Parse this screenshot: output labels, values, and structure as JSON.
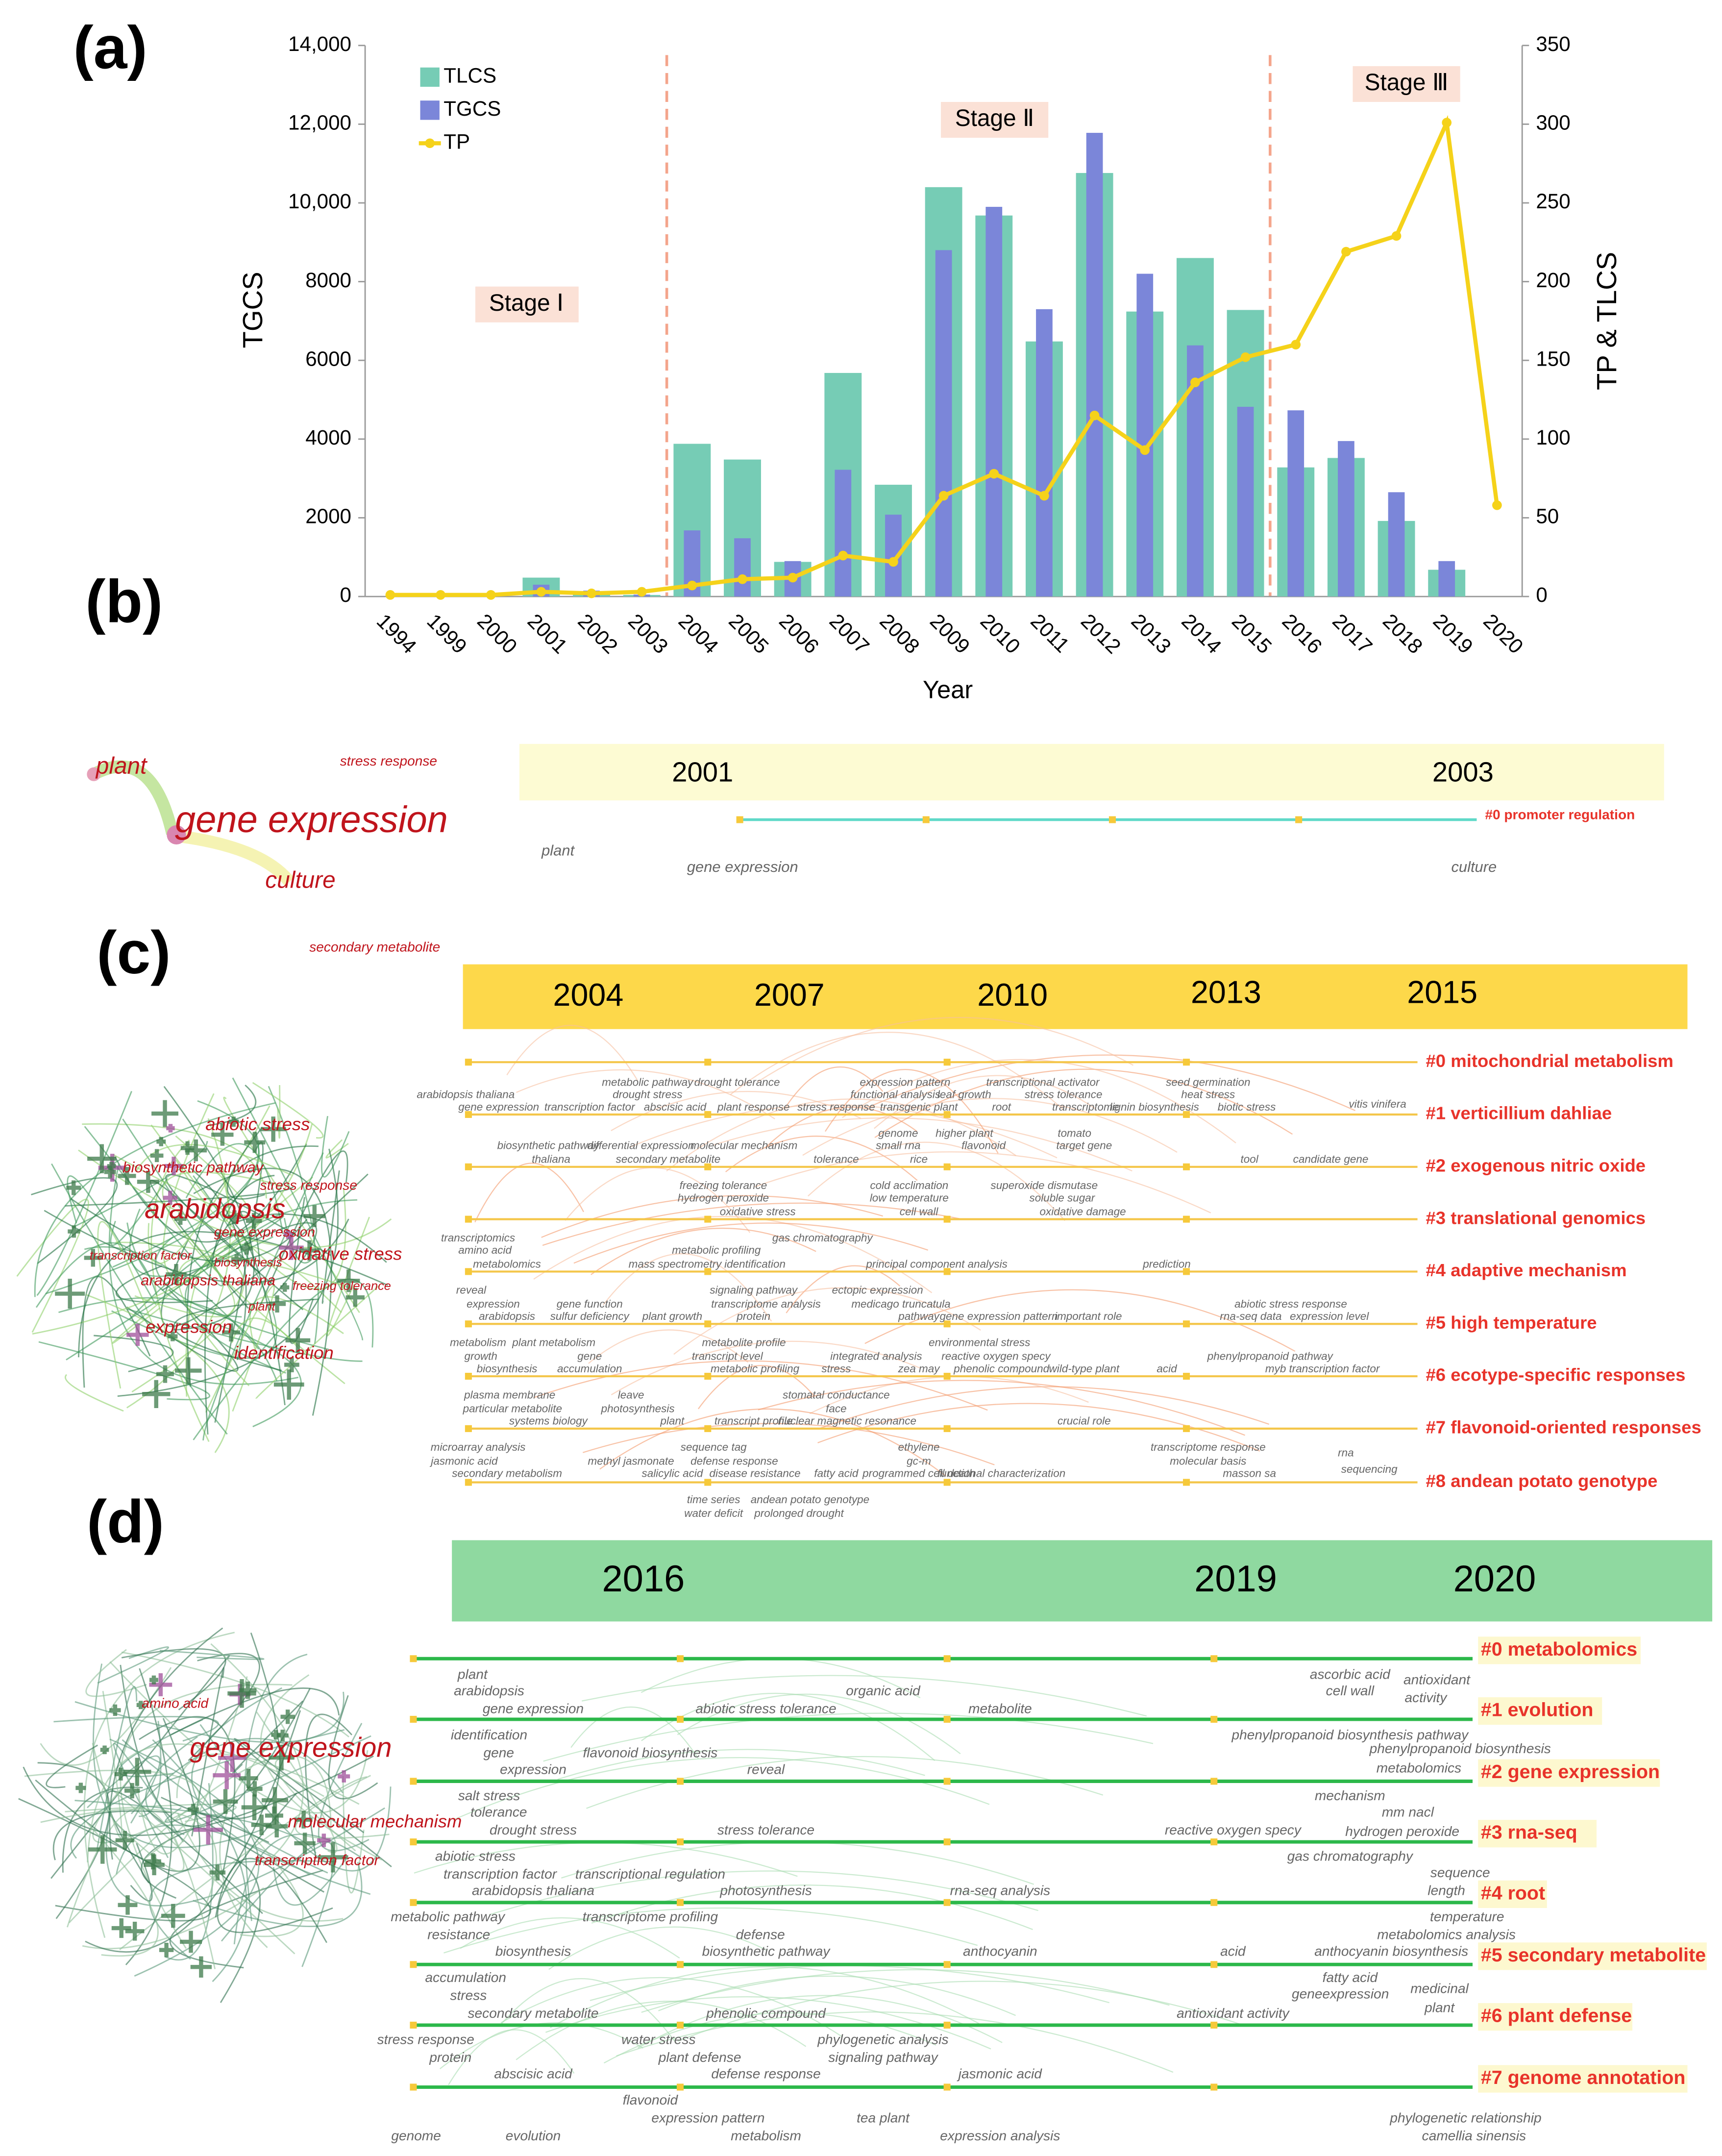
{
  "chart_data": {
    "type": "bar",
    "panel_label": "(a)",
    "categories": [
      "1994",
      "1999",
      "2000",
      "2001",
      "2002",
      "2003",
      "2004",
      "2005",
      "2006",
      "2007",
      "2008",
      "2009",
      "2010",
      "2011",
      "2012",
      "2013",
      "2014",
      "2015",
      "2016",
      "2017",
      "2018",
      "2019",
      "2020"
    ],
    "series": [
      {
        "name": "TLCS",
        "color": "#76ccb5",
        "axis": "y2",
        "values": [
          0,
          0,
          0,
          12,
          3,
          1,
          97,
          87,
          22,
          142,
          71,
          260,
          242,
          162,
          269,
          181,
          215,
          182,
          82,
          88,
          48,
          17,
          0
        ]
      },
      {
        "name": "TGCS",
        "color": "#7b86d9",
        "values": [
          0,
          0,
          0,
          300,
          150,
          50,
          1680,
          1480,
          900,
          3220,
          2080,
          8800,
          9900,
          7300,
          11780,
          8200,
          6380,
          4820,
          4730,
          3950,
          2650,
          900,
          0
        ]
      },
      {
        "name": "TP",
        "color": "#f5d21a",
        "axis": "y2",
        "type": "line",
        "values": [
          1,
          1,
          1,
          3,
          2,
          3,
          7,
          11,
          12,
          26,
          22,
          64,
          78,
          64,
          115,
          93,
          136,
          152,
          160,
          219,
          229,
          301,
          58
        ]
      }
    ],
    "xlabel": "Year",
    "ylabel": "TGCS",
    "y2label": "TP & TLCS",
    "ylim": [
      0,
      14000
    ],
    "yticks": [
      0,
      2000,
      4000,
      6000,
      8000,
      {
        "value": 10000,
        "label": "10,000"
      },
      {
        "value": 12000,
        "label": "12,000"
      },
      {
        "value": 14000,
        "label": "14,000"
      }
    ],
    "y2lim": [
      0,
      350
    ],
    "y2ticks": [
      0,
      50,
      100,
      150,
      200,
      250,
      300,
      350
    ],
    "annotations": [
      "Stage Ⅰ",
      "Stage Ⅱ",
      "Stage Ⅲ"
    ],
    "legend": "upper left",
    "grid": false
  },
  "panel_b": {
    "label": "(b)",
    "years": [
      "2001",
      "2003"
    ],
    "clusters": [
      "#0 promoter regulation"
    ],
    "network_terms": [
      "plant",
      "stress response",
      "gene expression",
      "culture"
    ],
    "timeline_terms": [
      "plant",
      "gene expression",
      "culture"
    ]
  },
  "panel_c": {
    "label": "(c)",
    "years": [
      "2004",
      "2007",
      "2010",
      "2013",
      "2015"
    ],
    "clusters": [
      "#0 mitochondrial metabolism",
      "#1 verticillium dahliae",
      "#2 exogenous nitric oxide",
      "#3 translational genomics",
      "#4 adaptive mechanism",
      "#5 high temperature",
      "#6 ecotype-specific responses",
      "#7 flavonoid-oriented responses",
      "#8 andean potato genotype"
    ],
    "network_terms": [
      "secondary metabolite",
      "abiotic stress",
      "biosynthetic pathway",
      "stress response",
      "arabidopsis",
      "gene expression",
      "transcription factor",
      "biosynthesis",
      "oxidative stress",
      "arabidopsis thaliana",
      "freezing tolerance",
      "plant",
      "expression",
      "identification"
    ],
    "timeline_terms": [
      "metabolic pathway",
      "drought tolerance",
      "expression pattern",
      "transcriptional activator",
      "seed germination",
      "arabidopsis thaliana",
      "drought stress",
      "functional analysis",
      "leaf growth",
      "stress tolerance",
      "heat stress",
      "gene expression",
      "transcription factor",
      "abscisic acid",
      "plant response",
      "stress response",
      "transgenic plant",
      "root",
      "transcriptome",
      "lignin biosynthesis",
      "biotic stress",
      "vitis vinifera",
      "biosynthetic pathway",
      "differential expression",
      "molecular mechanism",
      "genome",
      "higher plant",
      "tomato",
      "small rna",
      "flavonoid",
      "target gene",
      "thaliana",
      "secondary metabolite",
      "tolerance",
      "rice",
      "tool",
      "candidate gene",
      "freezing tolerance",
      "cold acclimation",
      "superoxide dismutase",
      "hydrogen peroxide",
      "low temperature",
      "soluble sugar",
      "oxidative stress",
      "cell wall",
      "oxidative damage",
      "transcriptomics",
      "gas chromatography",
      "amino acid",
      "metabolic profiling",
      "metabolomics",
      "mass spectrometry",
      "identification",
      "principal component analysis",
      "prediction",
      "reveal",
      "signaling pathway",
      "ectopic expression",
      "expression",
      "gene function",
      "transcriptome analysis",
      "medicago truncatula",
      "abiotic stress response",
      "arabidopsis",
      "sulfur deficiency",
      "plant growth",
      "protein",
      "pathway",
      "gene expression pattern",
      "important role",
      "rna-seq data",
      "expression level",
      "metabolism",
      "plant metabolism",
      "metabolite profile",
      "environmental stress",
      "growth",
      "gene",
      "transcript level",
      "integrated analysis",
      "reactive oxygen specy",
      "phenylpropanoid pathway",
      "biosynthesis",
      "accumulation",
      "metabolic profiling",
      "stress",
      "zea may",
      "phenolic compound",
      "wild-type plant",
      "acid",
      "myb transcription factor",
      "plasma membrane",
      "leave",
      "stomatal conductance",
      "particular metabolite",
      "photosynthesis",
      "face",
      "systems biology",
      "plant",
      "transcript profile",
      "nuclear magnetic resonance",
      "crucial role",
      "microarray analysis",
      "sequence tag",
      "ethylene",
      "transcriptome response",
      "rna",
      "jasmonic acid",
      "methyl jasmonate",
      "defense response",
      "gc-m",
      "molecular basis",
      "secondary metabolism",
      "salicylic acid",
      "disease resistance",
      "fatty acid",
      "programmed cell death",
      "functional characterization",
      "masson sa",
      "sequencing",
      "time series",
      "andean potato genotype",
      "water deficit",
      "prolonged drought"
    ]
  },
  "panel_d": {
    "label": "(d)",
    "years": [
      "2016",
      "2019",
      "2020"
    ],
    "clusters": [
      "#0 metabolomics",
      "#1 evolution",
      "#2 gene expression",
      "#3 rna-seq",
      "#4 root",
      "#5 secondary metabolite",
      "#6 plant defense",
      "#7 genome annotation"
    ],
    "network_terms": [
      "amino acid",
      "gene expression",
      "molecular mechanism",
      "transcription factor"
    ],
    "timeline_terms": [
      "plant",
      "organic acid",
      "ascorbic acid",
      "antioxidant",
      "arabidopsis",
      "cell wall",
      "activity",
      "gene expression",
      "abiotic stress tolerance",
      "metabolite",
      "identification",
      "phenylpropanoid biosynthesis pathway",
      "gene",
      "flavonoid biosynthesis",
      "phenylpropanoid biosynthesis",
      "expression",
      "reveal",
      "metabolomics",
      "salt stress",
      "mechanism",
      "tolerance",
      "mm nacl",
      "drought stress",
      "stress tolerance",
      "reactive oxygen specy",
      "hydrogen peroxide",
      "gas chromatography",
      "abiotic stress",
      "transcription factor",
      "transcriptional regulation",
      "sequence",
      "arabidopsis thaliana",
      "photosynthesis",
      "rna-seq analysis",
      "length",
      "metabolic pathway",
      "transcriptome profiling",
      "temperature",
      "resistance",
      "defense",
      "metabolomics analysis",
      "biosynthesis",
      "biosynthetic pathway",
      "anthocyanin",
      "acid",
      "anthocyanin biosynthesis",
      "accumulation",
      "fatty acid",
      "stress",
      "geneexpression",
      "medicinal",
      "secondary metabolite",
      "phenolic compound",
      "antioxidant activity",
      "plant",
      "stress response",
      "water stress",
      "phylogenetic analysis",
      "protein",
      "plant defense",
      "signaling pathway",
      "abscisic acid",
      "defense response",
      "jasmonic acid",
      "flavonoid",
      "expression pattern",
      "tea plant",
      "phylogenetic relationship",
      "genome",
      "evolution",
      "metabolism",
      "expression analysis",
      "camellia sinensis"
    ]
  }
}
